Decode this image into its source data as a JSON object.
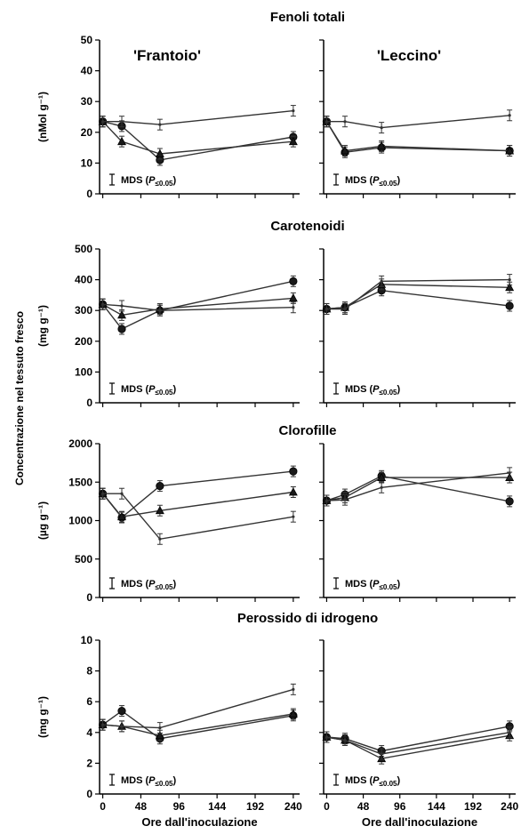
{
  "figure": {
    "ylabel_main": "Concentrazione nel tessuto fresco",
    "cultivars": [
      "'Frantoio'",
      "'Leccino'"
    ]
  },
  "chart_data": [
    {
      "type": "line",
      "title": "Fenoli totali",
      "ylabel": "(nMol g⁻¹)",
      "ylim": [
        0,
        50
      ],
      "yticks": [
        0,
        10,
        20,
        30,
        40,
        50
      ],
      "mds_label": "MDS (",
      "mds_p": "P",
      "mds_sub": "≤0.05",
      "mds_close": ")",
      "panels": [
        {
          "cultivar": "'Frantoio'",
          "x": [
            0,
            24,
            72,
            240
          ],
          "series": [
            {
              "marker": "circle",
              "values": [
                23.5,
                22,
                11,
                18.5
              ]
            },
            {
              "marker": "triangle",
              "values": [
                23.5,
                17,
                13,
                17
              ]
            },
            {
              "marker": "open",
              "values": [
                23.5,
                23.5,
                22.5,
                27
              ]
            }
          ]
        },
        {
          "cultivar": "'Leccino'",
          "x": [
            0,
            24,
            72,
            240
          ],
          "series": [
            {
              "marker": "circle",
              "values": [
                23.5,
                13.5,
                15,
                14
              ]
            },
            {
              "marker": "triangle",
              "values": [
                23.5,
                14,
                15.5,
                14
              ]
            },
            {
              "marker": "open",
              "values": [
                23.5,
                23.5,
                21.5,
                25.5
              ]
            }
          ]
        }
      ]
    },
    {
      "type": "line",
      "title": "Carotenoidi",
      "ylabel": "(mg g⁻¹)",
      "ylim": [
        0,
        500
      ],
      "yticks": [
        0,
        100,
        200,
        300,
        400,
        500
      ],
      "mds_label": "MDS (",
      "mds_p": "P",
      "mds_sub": "≤0.05",
      "mds_close": ")",
      "panels": [
        {
          "cultivar": "'Frantoio'",
          "x": [
            0,
            24,
            72,
            240
          ],
          "series": [
            {
              "marker": "circle",
              "values": [
                320,
                240,
                300,
                395
              ]
            },
            {
              "marker": "triangle",
              "values": [
                320,
                285,
                305,
                340
              ]
            },
            {
              "marker": "open",
              "values": [
                320,
                315,
                300,
                310
              ]
            }
          ]
        },
        {
          "cultivar": "'Leccino'",
          "x": [
            0,
            24,
            72,
            240
          ],
          "series": [
            {
              "marker": "circle",
              "values": [
                305,
                310,
                365,
                315
              ]
            },
            {
              "marker": "triangle",
              "values": [
                305,
                310,
                385,
                375
              ]
            },
            {
              "marker": "open",
              "values": [
                305,
                305,
                395,
                400
              ]
            }
          ]
        }
      ]
    },
    {
      "type": "line",
      "title": "Clorofille",
      "ylabel": "(µg g⁻¹)",
      "ylim": [
        0,
        2000
      ],
      "yticks": [
        0,
        500,
        1000,
        1500,
        2000
      ],
      "mds_label": "MDS (",
      "mds_p": "P",
      "mds_sub": "≤0.05",
      "mds_close": ")",
      "panels": [
        {
          "cultivar": "'Frantoio'",
          "x": [
            0,
            24,
            72,
            240
          ],
          "series": [
            {
              "marker": "circle",
              "values": [
                1350,
                1040,
                1450,
                1640
              ]
            },
            {
              "marker": "triangle",
              "values": [
                1350,
                1050,
                1130,
                1370
              ]
            },
            {
              "marker": "open",
              "values": [
                1350,
                1350,
                760,
                1050
              ]
            }
          ]
        },
        {
          "cultivar": "'Leccino'",
          "x": [
            0,
            24,
            72,
            240
          ],
          "series": [
            {
              "marker": "circle",
              "values": [
                1260,
                1340,
                1580,
                1250
              ]
            },
            {
              "marker": "triangle",
              "values": [
                1260,
                1300,
                1560,
                1560
              ]
            },
            {
              "marker": "open",
              "values": [
                1260,
                1270,
                1430,
                1620
              ]
            }
          ]
        }
      ]
    },
    {
      "type": "line",
      "title": "Perossido di idrogeno",
      "ylabel": "(mg g⁻¹)",
      "ylim": [
        0,
        10
      ],
      "yticks": [
        0,
        2,
        4,
        6,
        8,
        10
      ],
      "xlabel": "Ore dall'inoculazione",
      "xticks": [
        0,
        48,
        96,
        144,
        192,
        240
      ],
      "mds_label": "MDS (",
      "mds_p": "P",
      "mds_sub": "≤0.05",
      "mds_close": ")",
      "panels": [
        {
          "cultivar": "'Frantoio'",
          "x": [
            0,
            24,
            72,
            240
          ],
          "series": [
            {
              "marker": "circle",
              "values": [
                4.5,
                5.4,
                3.6,
                5.1
              ]
            },
            {
              "marker": "triangle",
              "values": [
                4.5,
                4.4,
                3.8,
                5.2
              ]
            },
            {
              "marker": "open",
              "values": [
                4.5,
                4.4,
                4.3,
                6.8
              ]
            }
          ]
        },
        {
          "cultivar": "'Leccino'",
          "x": [
            0,
            24,
            72,
            240
          ],
          "series": [
            {
              "marker": "circle",
              "values": [
                3.7,
                3.6,
                2.8,
                4.4
              ]
            },
            {
              "marker": "triangle",
              "values": [
                3.7,
                3.5,
                2.3,
                3.8
              ]
            },
            {
              "marker": "open",
              "values": [
                3.7,
                3.5,
                2.6,
                4.0
              ]
            }
          ]
        }
      ]
    }
  ]
}
